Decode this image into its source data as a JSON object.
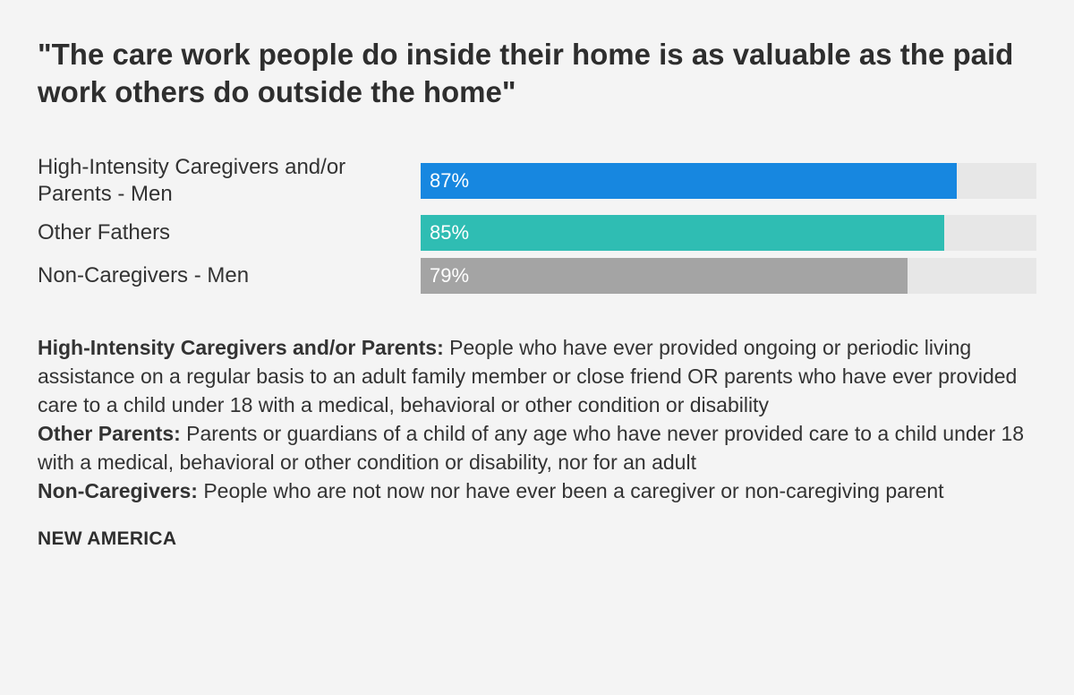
{
  "title": "\"The care work people do inside their home is as valuable as the paid work others do outside the home\"",
  "chart_data": {
    "type": "bar",
    "orientation": "horizontal",
    "title": "\"The care work people do inside their home is as valuable as the paid work others do outside the home\"",
    "categories": [
      "High-Intensity Caregivers and/or Parents - Men",
      "Other Fathers",
      "Non-Caregivers - Men"
    ],
    "values": [
      87,
      85,
      79
    ],
    "value_labels": [
      "87%",
      "85%",
      "79%"
    ],
    "unit": "%",
    "xlim": [
      0,
      100
    ],
    "colors": [
      "#1787e0",
      "#2fbdb3",
      "#a4a4a4"
    ],
    "track_color": "#e7e7e7",
    "grid": false,
    "legend": "none"
  },
  "notes": [
    {
      "term": "High-Intensity Caregivers and/or Parents:",
      "text": " People who have ever provided ongoing or periodic living assistance on a regular basis to an adult family member or close friend OR parents who have ever provided care to a child under 18 with a medical, behavioral or other condition or disability"
    },
    {
      "term": "Other Parents:",
      "text": " Parents or guardians of a child of any age who have never provided care to a child under 18 with a medical, behavioral or other condition or disability, nor for an adult"
    },
    {
      "term": "Non-Caregivers:",
      "text": " People who are not now nor have ever been a caregiver or non-caregiving parent"
    }
  ],
  "source": "NEW AMERICA"
}
